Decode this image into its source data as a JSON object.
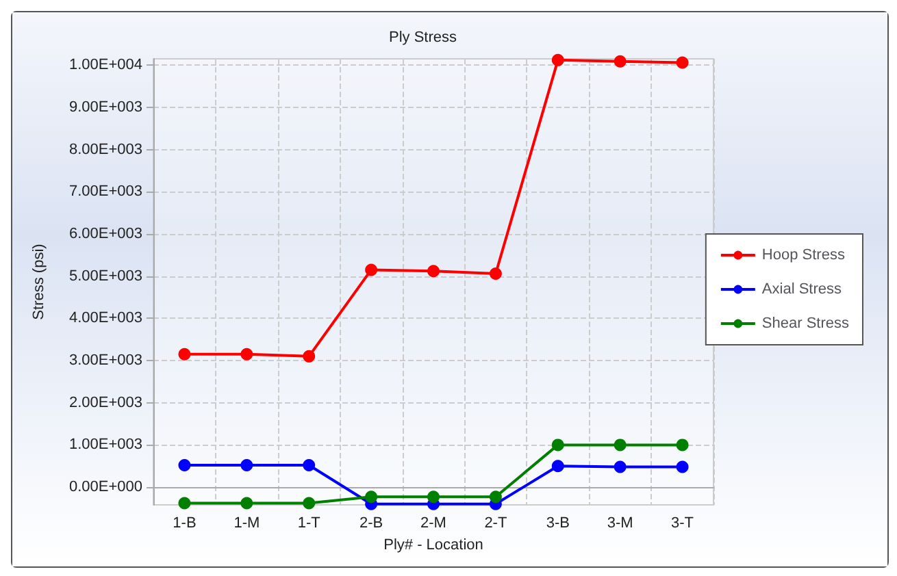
{
  "chart_data": {
    "type": "line",
    "title": "Ply Stress",
    "xlabel": "Ply# - Location",
    "ylabel": "Stress (psi)",
    "categories": [
      "1-B",
      "1-M",
      "1-T",
      "2-B",
      "2-M",
      "2-T",
      "3-B",
      "3-M",
      "3-T"
    ],
    "series": [
      {
        "name": "Hoop Stress",
        "color": "#ff0000",
        "values": [
          3150,
          3150,
          3100,
          5150,
          5120,
          5060,
          10120,
          10090,
          10060
        ]
      },
      {
        "name": "Axial Stress",
        "color": "#0000ff",
        "values": [
          520,
          520,
          520,
          -400,
          -400,
          -400,
          500,
          480,
          480
        ]
      },
      {
        "name": "Shear Stress",
        "color": "#007f00",
        "values": [
          -380,
          -380,
          -380,
          -230,
          -230,
          -230,
          1000,
          1000,
          1000
        ]
      }
    ],
    "ylim": [
      -420,
      10150
    ],
    "yticks": [
      {
        "value": 0,
        "label": "0.00E+000"
      },
      {
        "value": 1000,
        "label": "1.00E+003"
      },
      {
        "value": 2000,
        "label": "2.00E+003"
      },
      {
        "value": 3000,
        "label": "3.00E+003"
      },
      {
        "value": 4000,
        "label": "4.00E+003"
      },
      {
        "value": 5000,
        "label": "5.00E+003"
      },
      {
        "value": 6000,
        "label": "6.00E+003"
      },
      {
        "value": 7000,
        "label": "7.00E+003"
      },
      {
        "value": 8000,
        "label": "8.00E+003"
      },
      {
        "value": 9000,
        "label": "9.00E+003"
      },
      {
        "value": 10000,
        "label": "1.00E+004"
      }
    ],
    "grid": true,
    "legend": "right",
    "marker": "circle",
    "line_style": "solid"
  }
}
